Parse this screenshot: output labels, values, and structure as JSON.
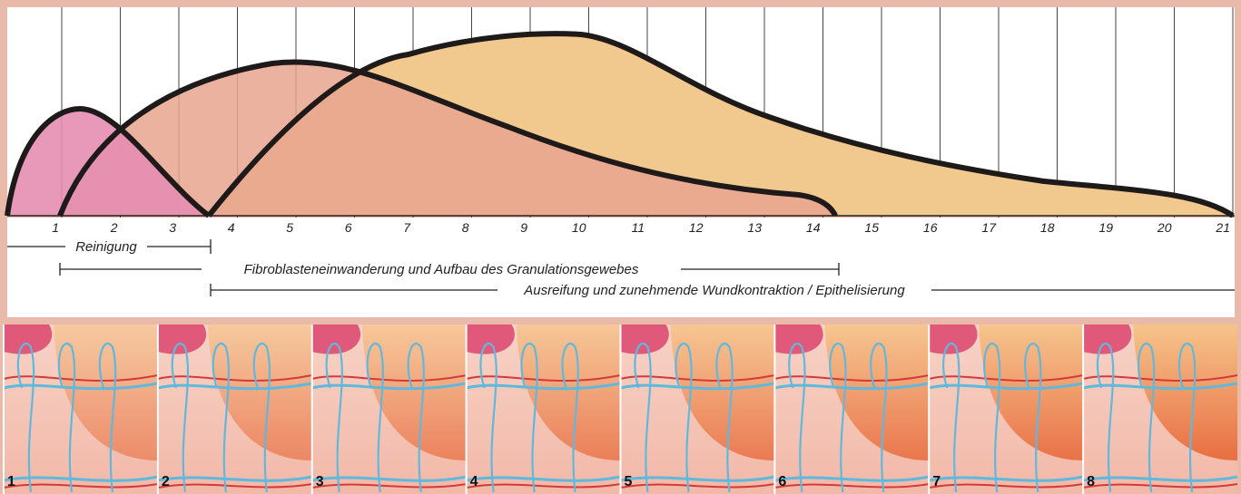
{
  "timeline": {
    "days": [
      1,
      2,
      3,
      4,
      5,
      6,
      7,
      8,
      9,
      10,
      11,
      12,
      13,
      14,
      15,
      16,
      17,
      18,
      19,
      20,
      21
    ]
  },
  "phases": [
    {
      "label": "Reinigung"
    },
    {
      "label": "Fibroblasteneinwanderung und Aufbau des Granulationsgewebes"
    },
    {
      "label": "Ausreifung und zunehmende Wundkontraktion / Epithelisierung"
    }
  ],
  "panels": [
    1,
    2,
    3,
    4,
    5,
    6,
    7,
    8
  ]
}
